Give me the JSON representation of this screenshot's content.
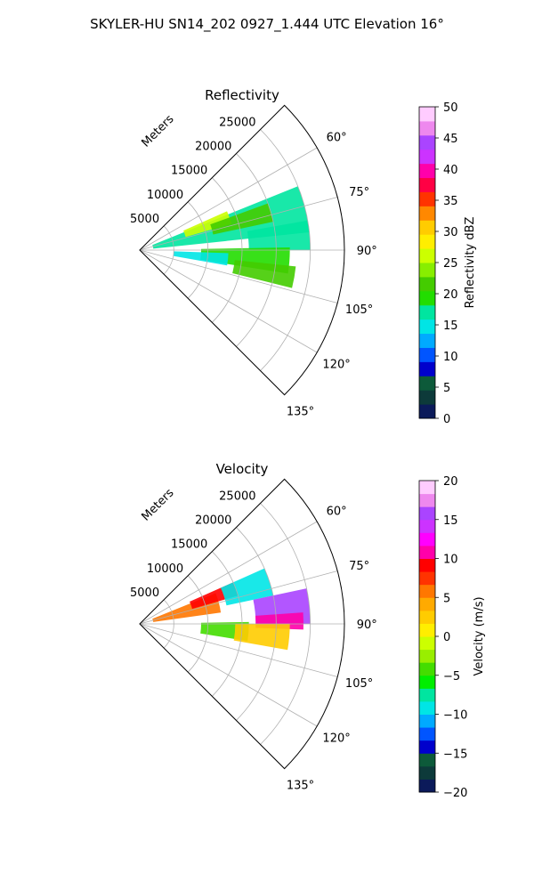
{
  "figure": {
    "suptitle": "SKYLER-HU  SN14_202  0927_1.444 UTC Elevation 16°"
  },
  "chart_data": [
    {
      "type": "polar-sector",
      "title": "Reflectivity",
      "range_label": "Meters",
      "radial_ticks": [
        "5000",
        "10000",
        "15000",
        "20000",
        "25000"
      ],
      "radial_tick_values": [
        5000,
        10000,
        15000,
        20000,
        25000
      ],
      "angle_ticks": [
        "60°",
        "75°",
        "90°",
        "105°",
        "120°",
        "135°"
      ],
      "angle_tick_values": [
        60,
        75,
        90,
        105,
        120,
        135
      ],
      "theta_range_deg": [
        45,
        135
      ],
      "rmax": 30000,
      "grid": true,
      "colorbar": {
        "label": "Reflectivity dBZ",
        "min": 0,
        "max": 50,
        "ticks": [
          "0",
          "5",
          "10",
          "15",
          "20",
          "25",
          "30",
          "35",
          "40",
          "45",
          "50"
        ],
        "tick_values": [
          0,
          5,
          10,
          15,
          20,
          25,
          30,
          35,
          40,
          45,
          50
        ],
        "colors": [
          "#0b1a5a",
          "#0d3a3a",
          "#0d5a3a",
          "#0000cc",
          "#0055ff",
          "#00aaff",
          "#00e5e5",
          "#00e5a0",
          "#22dd00",
          "#44cc00",
          "#88ee00",
          "#ccff00",
          "#ffee00",
          "#ffcc00",
          "#ff8800",
          "#ff3300",
          "#ff0044",
          "#ff00aa",
          "#cc33ff",
          "#aa44ff",
          "#ee88ee",
          "#ffccff"
        ]
      },
      "echo_regions": [
        {
          "theta": [
            68,
            84
          ],
          "r": [
            2000,
            25000
          ],
          "value": 18
        },
        {
          "theta": [
            66,
            74
          ],
          "r": [
            7000,
            14000
          ],
          "value": 26
        },
        {
          "theta": [
            70,
            78
          ],
          "r": [
            11000,
            20000
          ],
          "value": 21
        },
        {
          "theta": [
            80,
            90
          ],
          "r": [
            16000,
            25000
          ],
          "value": 16
        },
        {
          "theta": [
            89,
            99
          ],
          "r": [
            9000,
            22000
          ],
          "value": 20
        },
        {
          "theta": [
            92,
            100
          ],
          "r": [
            5000,
            13000
          ],
          "value": 14
        },
        {
          "theta": [
            96,
            104
          ],
          "r": [
            14000,
            23000
          ],
          "value": 22
        }
      ]
    },
    {
      "type": "polar-sector",
      "title": "Velocity",
      "range_label": "Meters",
      "radial_ticks": [
        "5000",
        "10000",
        "15000",
        "20000",
        "25000"
      ],
      "radial_tick_values": [
        5000,
        10000,
        15000,
        20000,
        25000
      ],
      "angle_ticks": [
        "60°",
        "75°",
        "90°",
        "105°",
        "120°",
        "135°"
      ],
      "angle_tick_values": [
        60,
        75,
        90,
        105,
        120,
        135
      ],
      "theta_range_deg": [
        45,
        135
      ],
      "rmax": 30000,
      "grid": true,
      "colorbar": {
        "label": "Velocity (m/s)",
        "min": -20,
        "max": 20,
        "ticks": [
          "−20",
          "−15",
          "−10",
          "−5",
          "0",
          "5",
          "10",
          "15",
          "20"
        ],
        "tick_values": [
          -20,
          -15,
          -10,
          -5,
          0,
          5,
          10,
          15,
          20
        ],
        "colors": [
          "#0b1a5a",
          "#0d3a3a",
          "#0d5a3a",
          "#0000cc",
          "#0055ff",
          "#00aaff",
          "#00e5e5",
          "#00e5a0",
          "#00ee00",
          "#44dd00",
          "#99ee00",
          "#ccff00",
          "#ffee00",
          "#ffcc00",
          "#ffaa00",
          "#ff7700",
          "#ff3300",
          "#ff0000",
          "#ff00aa",
          "#ff00ff",
          "#cc33ff",
          "#aa44ff",
          "#ee88ee",
          "#ffccff"
        ]
      },
      "echo_regions": [
        {
          "theta": [
            68,
            82
          ],
          "r": [
            2000,
            12000
          ],
          "value": 6
        },
        {
          "theta": [
            66,
            74
          ],
          "r": [
            8000,
            15000
          ],
          "value": 9
        },
        {
          "theta": [
            66,
            78
          ],
          "r": [
            13000,
            20000
          ],
          "value": -10
        },
        {
          "theta": [
            78,
            90
          ],
          "r": [
            17000,
            25000
          ],
          "value": 15
        },
        {
          "theta": [
            86,
            92
          ],
          "r": [
            17000,
            24000
          ],
          "value": 10
        },
        {
          "theta": [
            89,
            99
          ],
          "r": [
            9000,
            16000
          ],
          "value": -5
        },
        {
          "theta": [
            90,
            100
          ],
          "r": [
            14000,
            22000
          ],
          "value": 3
        }
      ]
    }
  ]
}
